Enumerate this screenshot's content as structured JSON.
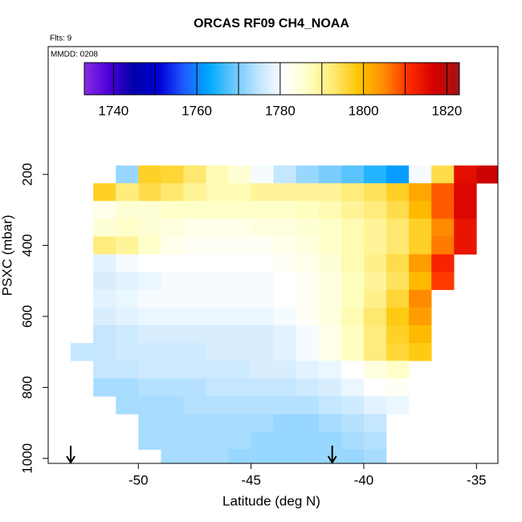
{
  "chart_data": {
    "type": "heatmap",
    "title": "ORCAS RF09 CH4_NOAA",
    "annotations": [
      "Flts: 9",
      "MMDD: 0208"
    ],
    "x_label": "Latitude (deg N)",
    "y_label": "PSXC (mbar)",
    "xlim": [
      -54,
      -34.05
    ],
    "xticks": [
      -50,
      -45,
      -40,
      -35
    ],
    "ylim": [
      1014,
      -160
    ],
    "yticks": [
      200,
      400,
      600,
      800,
      1000
    ],
    "markers_x": [
      -53,
      -41.4
    ],
    "colorbar_lim": [
      1733,
      1823
    ],
    "colorbar_ticks": [
      1740,
      1760,
      1780,
      1800,
      1820
    ],
    "colorbar_lines": [
      1740,
      1750,
      1760,
      1770,
      1780,
      1790,
      1800,
      1810,
      1820
    ],
    "colorscale": [
      "#8a2be2",
      "#4a00d8",
      "#0000a8",
      "#0000d8",
      "#1e5cff",
      "#00aaff",
      "#6cc8ff",
      "#c4e6ff",
      "#ffffff",
      "#ffffc0",
      "#ffe870",
      "#ffc400",
      "#ff8a00",
      "#ff2a00",
      "#d40000",
      "#a01414"
    ],
    "lat_edges": [
      -54,
      -53,
      -52,
      -51,
      -50,
      -49,
      -48,
      -47,
      -46,
      -45,
      -44,
      -43,
      -42,
      -41,
      -40,
      -39,
      -38,
      -37,
      -36,
      -35,
      -34
    ],
    "pressure_edges": [
      175,
      225,
      275,
      325,
      375,
      425,
      475,
      525,
      575,
      625,
      675,
      725,
      775,
      825,
      875,
      925,
      975,
      1015
    ],
    "z": [
      [
        null,
        null,
        null,
        1772,
        1797,
        1796,
        1793,
        1788,
        1785,
        1780,
        1775,
        1772,
        1770,
        1768,
        1765,
        1762,
        1780,
        1795,
        1815,
        1818
      ],
      [
        null,
        null,
        1797,
        1792,
        1795,
        1793,
        1790,
        1788,
        1788,
        1790,
        1790,
        1790,
        1790,
        1792,
        1794,
        1797,
        1802,
        1808,
        1816,
        null
      ],
      [
        null,
        null,
        1783,
        1785,
        1785,
        1786,
        1786,
        1786,
        1786,
        1786,
        1786,
        1787,
        1788,
        1790,
        1792,
        1795,
        1800,
        1808,
        1816,
        null
      ],
      [
        null,
        null,
        1785,
        1786,
        1785,
        1784,
        1783,
        1783,
        1783,
        1784,
        1784,
        1785,
        1786,
        1788,
        1790,
        1793,
        1797,
        1805,
        1814,
        null
      ],
      [
        null,
        null,
        1792,
        1790,
        1786,
        1783,
        1782,
        1782,
        1782,
        1782,
        1783,
        1784,
        1786,
        1788,
        1790,
        1793,
        1797,
        1806,
        1814,
        null
      ],
      [
        null,
        null,
        1778,
        1780,
        1781,
        1781,
        1781,
        1781,
        1781,
        1781,
        1782,
        1783,
        1785,
        1788,
        1791,
        1795,
        1803,
        1812,
        null,
        null
      ],
      [
        null,
        null,
        1777,
        1778,
        1779,
        1780,
        1780,
        1780,
        1780,
        1780,
        1781,
        1782,
        1784,
        1787,
        1790,
        1794,
        1800,
        1810,
        null,
        null
      ],
      [
        null,
        null,
        1778,
        1779,
        1780,
        1780,
        1780,
        1780,
        1780,
        1780,
        1781,
        1782,
        1784,
        1787,
        1791,
        1796,
        1805,
        null,
        null,
        null
      ],
      [
        null,
        null,
        1777,
        1778,
        1779,
        1779,
        1779,
        1779,
        1779,
        1779,
        1780,
        1782,
        1784,
        1788,
        1793,
        1798,
        1803,
        null,
        null,
        null
      ],
      [
        null,
        null,
        1775,
        1776,
        1777,
        1777,
        1777,
        1777,
        1777,
        1777,
        1778,
        1780,
        1783,
        1787,
        1792,
        1797,
        1800,
        null,
        null,
        null
      ],
      [
        null,
        1775,
        1775,
        1776,
        1776,
        1776,
        1776,
        1777,
        1777,
        1777,
        1778,
        1780,
        1783,
        1787,
        1792,
        1796,
        1798,
        null,
        null,
        null
      ],
      [
        null,
        null,
        1775,
        1775,
        1776,
        1776,
        1776,
        1776,
        1776,
        1777,
        1777,
        1778,
        1779,
        1781,
        1784,
        1786,
        null,
        null,
        null,
        null
      ],
      [
        null,
        null,
        1773,
        1773,
        1774,
        1774,
        1774,
        1775,
        1775,
        1775,
        1775,
        1776,
        1777,
        1779,
        1781,
        1782,
        null,
        null,
        null,
        null
      ],
      [
        null,
        null,
        null,
        1773,
        1773,
        1773,
        1774,
        1774,
        1774,
        1774,
        1774,
        1774,
        1775,
        1776,
        1778,
        1779,
        null,
        null,
        null,
        null
      ],
      [
        null,
        null,
        null,
        null,
        1773,
        1773,
        1773,
        1773,
        1773,
        1773,
        1772,
        1772,
        1773,
        1774,
        1775,
        null,
        null,
        null,
        null,
        null
      ],
      [
        null,
        null,
        null,
        null,
        1773,
        1773,
        1773,
        1773,
        1773,
        1772,
        1772,
        1772,
        1772,
        1773,
        1774,
        null,
        null,
        null,
        null,
        null
      ],
      [
        null,
        null,
        null,
        null,
        null,
        1773,
        1773,
        1773,
        1772,
        1772,
        1772,
        1772,
        1772,
        1772,
        1773,
        null,
        null,
        null,
        null,
        null
      ]
    ]
  }
}
